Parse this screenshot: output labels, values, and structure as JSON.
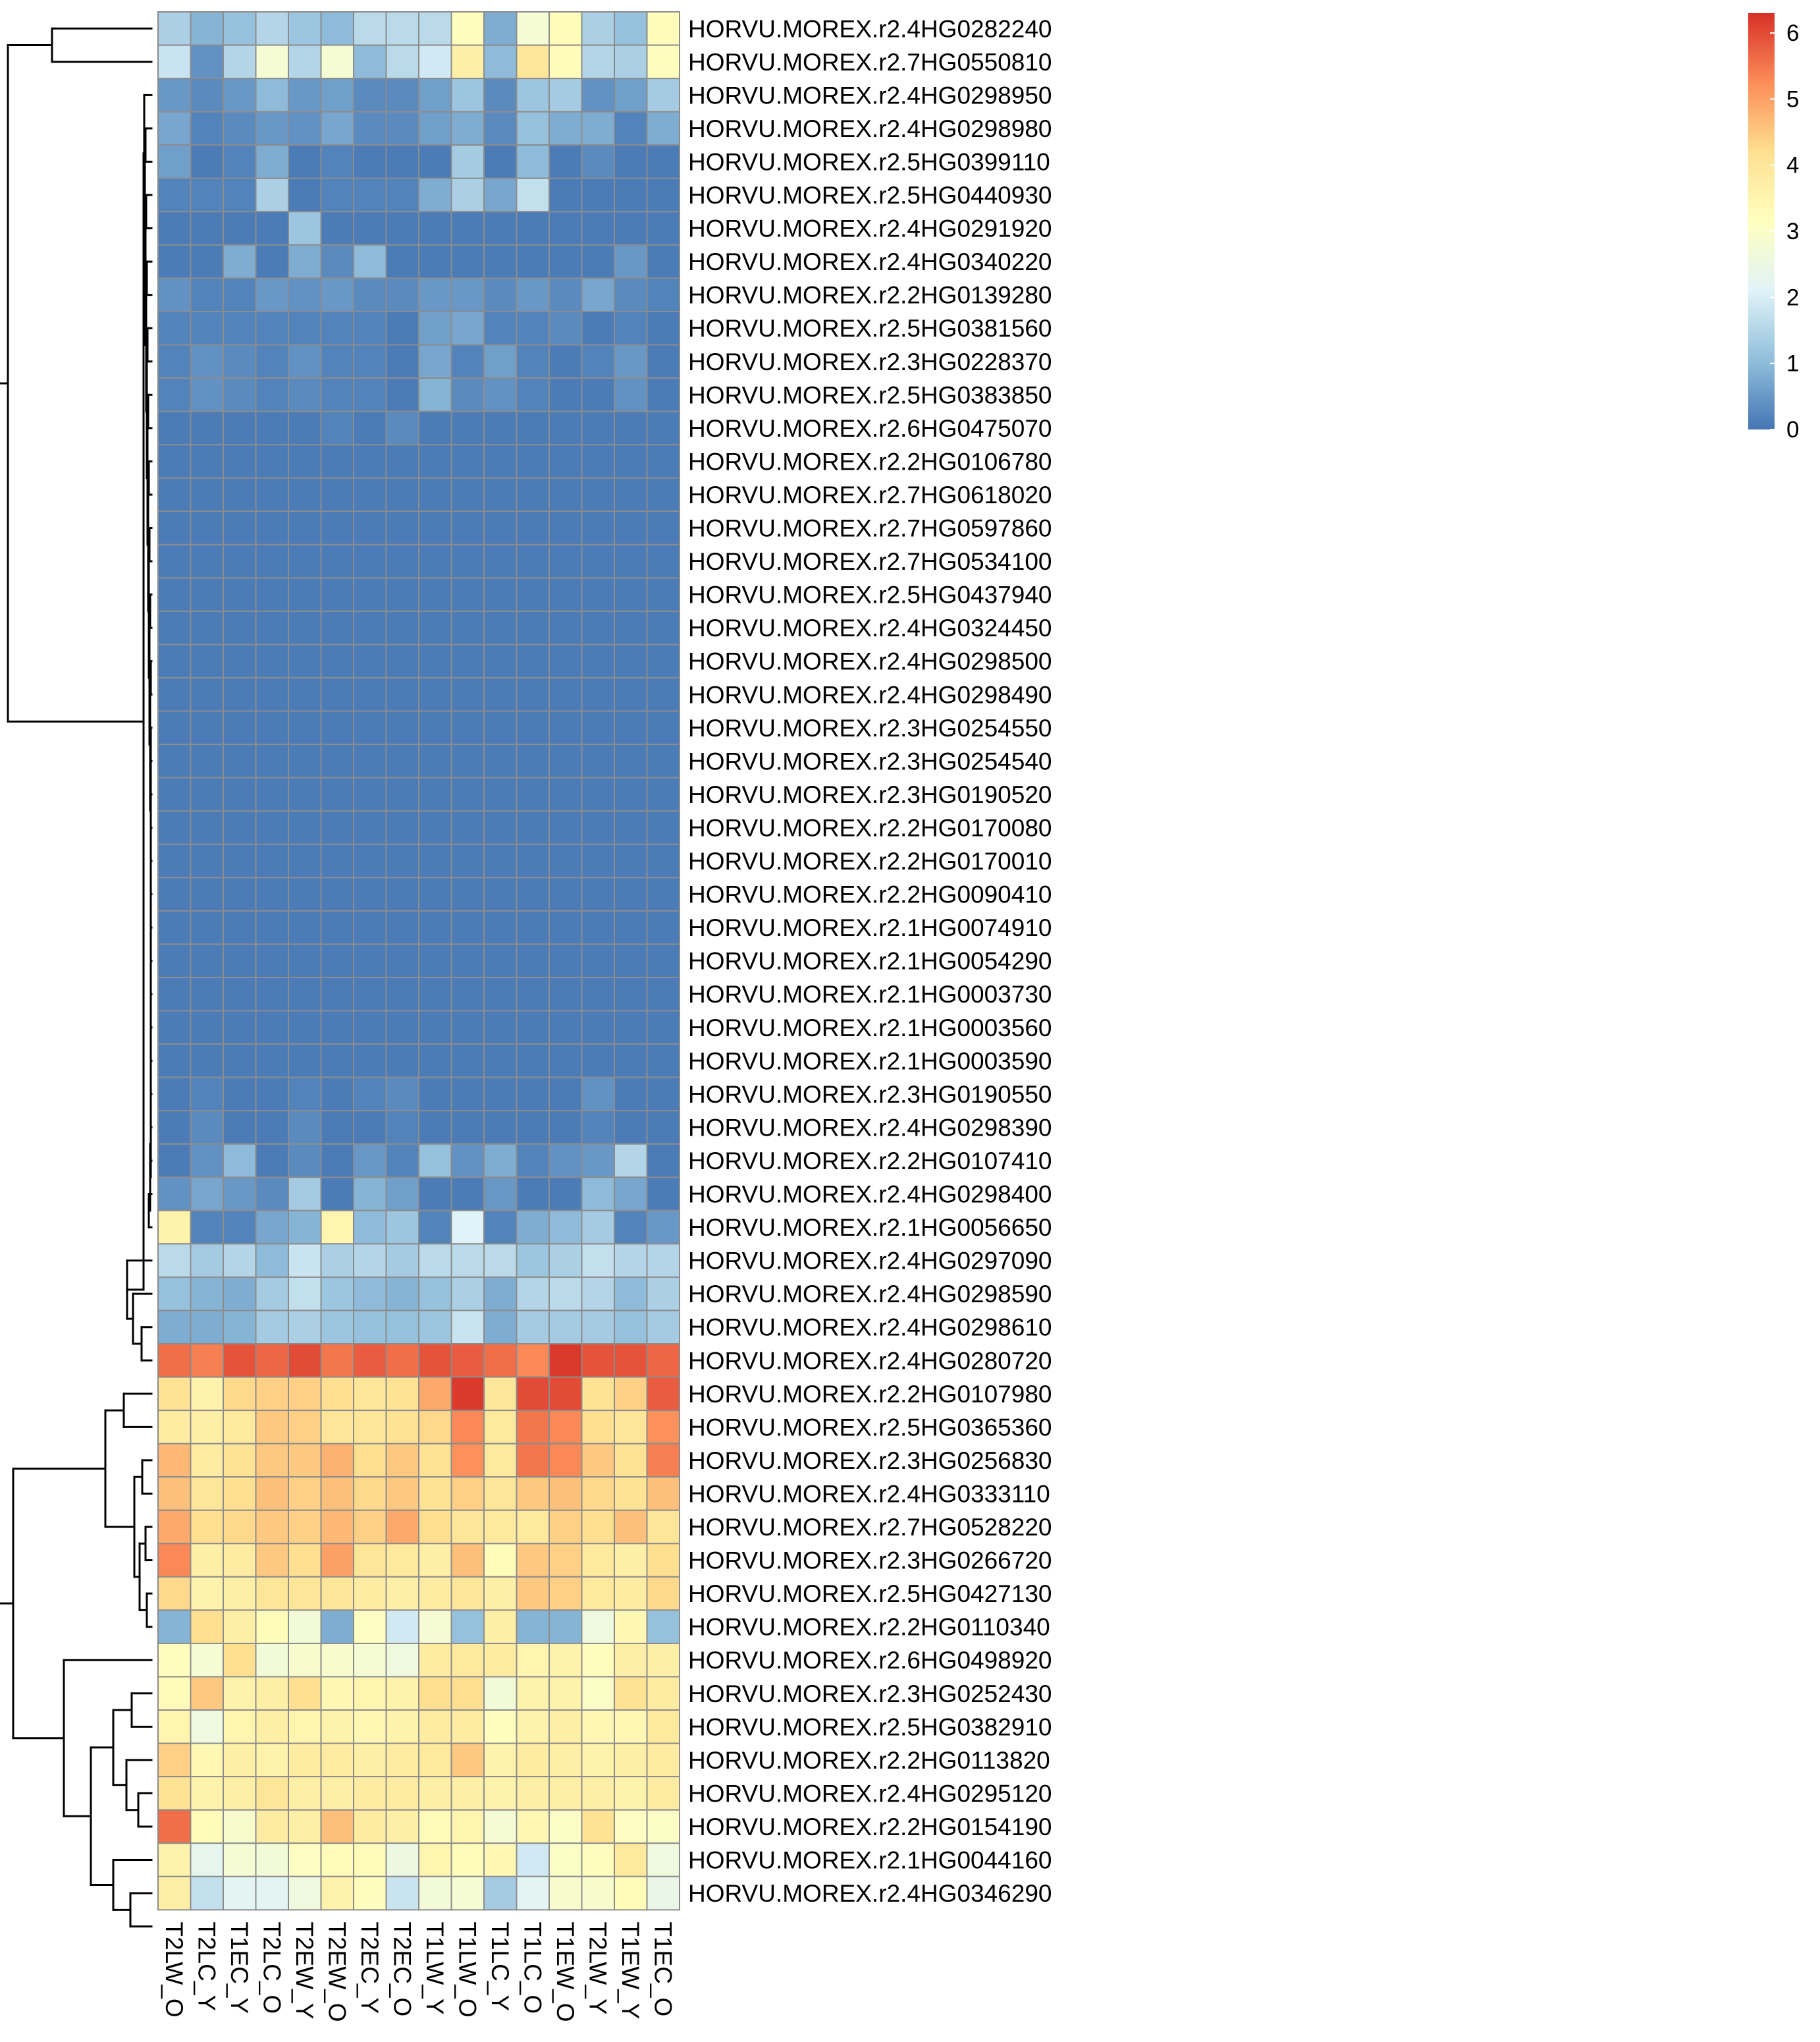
{
  "chart_data": {
    "type": "heatmap",
    "colormap": [
      "#4575B4",
      "#91BFDB",
      "#E0F3F8",
      "#FFFFBF",
      "#FEE090",
      "#FC8D59",
      "#D73027"
    ],
    "value_range": [
      0,
      6.3
    ],
    "legend": {
      "placement": "top-right",
      "ticks": [
        "0",
        "1",
        "2",
        "3",
        "4",
        "5",
        "6"
      ]
    },
    "columns": [
      "T2LW_O",
      "T2LC_Y",
      "T1EC_Y",
      "T2LC_O",
      "T2EW_Y",
      "T2EW_O",
      "T2EC_Y",
      "T2EC_O",
      "T1LW_Y",
      "T1LW_O",
      "T1LC_Y",
      "T1LC_O",
      "T1EW_O",
      "T2LW_Y",
      "T1EW_Y",
      "T1EC_O"
    ],
    "rows": [
      {
        "gene": "HORVU.MOREX.r2.4HG0282240",
        "values": [
          1.4,
          0.9,
          1.1,
          1.5,
          1.2,
          1.0,
          1.6,
          1.6,
          1.6,
          3.2,
          0.8,
          2.8,
          3.3,
          1.4,
          1.1,
          3.3
        ]
      },
      {
        "gene": "HORVU.MOREX.r2.7HG0550810",
        "values": [
          1.8,
          0.4,
          1.5,
          2.8,
          1.5,
          2.8,
          1.0,
          1.6,
          1.9,
          3.7,
          1.0,
          4.0,
          3.3,
          1.5,
          1.4,
          3.2
        ]
      },
      {
        "gene": "HORVU.MOREX.r2.4HG0298950",
        "values": [
          0.5,
          0.3,
          0.5,
          1.0,
          0.5,
          0.6,
          0.3,
          0.3,
          0.6,
          1.2,
          0.3,
          1.2,
          1.3,
          0.4,
          0.6,
          1.3
        ]
      },
      {
        "gene": "HORVU.MOREX.r2.4HG0298980",
        "values": [
          0.7,
          0.2,
          0.3,
          0.5,
          0.4,
          0.7,
          0.3,
          0.3,
          0.6,
          0.8,
          0.3,
          1.1,
          0.8,
          0.8,
          0.2,
          0.8
        ]
      },
      {
        "gene": "HORVU.MOREX.r2.5HG0399110",
        "values": [
          0.6,
          0.1,
          0.2,
          0.8,
          0.1,
          0.2,
          0.1,
          0.1,
          0.1,
          1.3,
          0.1,
          1.0,
          0.1,
          0.3,
          0.1,
          0.1
        ]
      },
      {
        "gene": "HORVU.MOREX.r2.5HG0440930",
        "values": [
          0.2,
          0.2,
          0.2,
          1.4,
          0.1,
          0.2,
          0.2,
          0.2,
          0.8,
          1.4,
          0.7,
          1.7,
          0.1,
          0.1,
          0.1,
          0.1
        ]
      },
      {
        "gene": "HORVU.MOREX.r2.4HG0291920",
        "values": [
          0.1,
          0.1,
          0.1,
          0.1,
          1.2,
          0.1,
          0.1,
          0.1,
          0.1,
          0.1,
          0.1,
          0.1,
          0.1,
          0.1,
          0.1,
          0.1
        ]
      },
      {
        "gene": "HORVU.MOREX.r2.4HG0340220",
        "values": [
          0.1,
          0.1,
          0.8,
          0.1,
          0.8,
          0.3,
          1.0,
          0.1,
          0.1,
          0.1,
          0.1,
          0.1,
          0.1,
          0.1,
          0.5,
          0.1
        ]
      },
      {
        "gene": "HORVU.MOREX.r2.2HG0139280",
        "values": [
          0.4,
          0.2,
          0.2,
          0.5,
          0.4,
          0.5,
          0.3,
          0.3,
          0.5,
          0.5,
          0.3,
          0.5,
          0.3,
          0.7,
          0.3,
          0.2
        ]
      },
      {
        "gene": "HORVU.MOREX.r2.5HG0381560",
        "values": [
          0.2,
          0.2,
          0.2,
          0.2,
          0.2,
          0.2,
          0.2,
          0.1,
          0.6,
          0.7,
          0.2,
          0.2,
          0.3,
          0.1,
          0.2,
          0.1
        ]
      },
      {
        "gene": "HORVU.MOREX.r2.3HG0228370",
        "values": [
          0.2,
          0.4,
          0.3,
          0.2,
          0.4,
          0.2,
          0.2,
          0.1,
          0.7,
          0.2,
          0.6,
          0.2,
          0.1,
          0.2,
          0.5,
          0.1
        ]
      },
      {
        "gene": "HORVU.MOREX.r2.5HG0383850",
        "values": [
          0.2,
          0.4,
          0.3,
          0.2,
          0.3,
          0.2,
          0.2,
          0.1,
          0.9,
          0.3,
          0.4,
          0.2,
          0.1,
          0.1,
          0.4,
          0.1
        ]
      },
      {
        "gene": "HORVU.MOREX.r2.6HG0475070",
        "values": [
          0.1,
          0.1,
          0.1,
          0.1,
          0.1,
          0.2,
          0.1,
          0.3,
          0.1,
          0.1,
          0.1,
          0.1,
          0.1,
          0.1,
          0.1,
          0.1
        ]
      },
      {
        "gene": "HORVU.MOREX.r2.2HG0106780",
        "values": [
          0.1,
          0.1,
          0.1,
          0.1,
          0.1,
          0.1,
          0.1,
          0.1,
          0.1,
          0.1,
          0.1,
          0.1,
          0.1,
          0.1,
          0.1,
          0.1
        ]
      },
      {
        "gene": "HORVU.MOREX.r2.7HG0618020",
        "values": [
          0.1,
          0.1,
          0.1,
          0.1,
          0.1,
          0.1,
          0.1,
          0.1,
          0.1,
          0.1,
          0.1,
          0.1,
          0.1,
          0.1,
          0.1,
          0.1
        ]
      },
      {
        "gene": "HORVU.MOREX.r2.7HG0597860",
        "values": [
          0.1,
          0.1,
          0.1,
          0.1,
          0.1,
          0.1,
          0.1,
          0.1,
          0.1,
          0.1,
          0.1,
          0.1,
          0.1,
          0.1,
          0.1,
          0.1
        ]
      },
      {
        "gene": "HORVU.MOREX.r2.7HG0534100",
        "values": [
          0.1,
          0.1,
          0.1,
          0.1,
          0.1,
          0.1,
          0.1,
          0.1,
          0.1,
          0.1,
          0.1,
          0.1,
          0.1,
          0.1,
          0.1,
          0.1
        ]
      },
      {
        "gene": "HORVU.MOREX.r2.5HG0437940",
        "values": [
          0.1,
          0.1,
          0.1,
          0.1,
          0.1,
          0.1,
          0.1,
          0.1,
          0.1,
          0.1,
          0.1,
          0.1,
          0.1,
          0.1,
          0.1,
          0.1
        ]
      },
      {
        "gene": "HORVU.MOREX.r2.4HG0324450",
        "values": [
          0.1,
          0.1,
          0.1,
          0.1,
          0.1,
          0.1,
          0.1,
          0.1,
          0.1,
          0.1,
          0.1,
          0.1,
          0.1,
          0.1,
          0.1,
          0.1
        ]
      },
      {
        "gene": "HORVU.MOREX.r2.4HG0298500",
        "values": [
          0.1,
          0.1,
          0.1,
          0.1,
          0.1,
          0.1,
          0.1,
          0.1,
          0.1,
          0.1,
          0.1,
          0.1,
          0.1,
          0.1,
          0.1,
          0.1
        ]
      },
      {
        "gene": "HORVU.MOREX.r2.4HG0298490",
        "values": [
          0.1,
          0.1,
          0.1,
          0.1,
          0.1,
          0.1,
          0.1,
          0.1,
          0.1,
          0.1,
          0.1,
          0.1,
          0.1,
          0.1,
          0.1,
          0.1
        ]
      },
      {
        "gene": "HORVU.MOREX.r2.3HG0254550",
        "values": [
          0.1,
          0.1,
          0.1,
          0.1,
          0.1,
          0.1,
          0.1,
          0.1,
          0.1,
          0.1,
          0.1,
          0.1,
          0.1,
          0.1,
          0.1,
          0.1
        ]
      },
      {
        "gene": "HORVU.MOREX.r2.3HG0254540",
        "values": [
          0.1,
          0.1,
          0.1,
          0.1,
          0.1,
          0.1,
          0.1,
          0.1,
          0.1,
          0.1,
          0.1,
          0.1,
          0.1,
          0.1,
          0.1,
          0.1
        ]
      },
      {
        "gene": "HORVU.MOREX.r2.3HG0190520",
        "values": [
          0.1,
          0.1,
          0.1,
          0.1,
          0.1,
          0.1,
          0.1,
          0.1,
          0.1,
          0.1,
          0.1,
          0.1,
          0.1,
          0.1,
          0.1,
          0.1
        ]
      },
      {
        "gene": "HORVU.MOREX.r2.2HG0170080",
        "values": [
          0.1,
          0.1,
          0.1,
          0.1,
          0.1,
          0.1,
          0.1,
          0.1,
          0.1,
          0.1,
          0.1,
          0.1,
          0.1,
          0.1,
          0.1,
          0.1
        ]
      },
      {
        "gene": "HORVU.MOREX.r2.2HG0170010",
        "values": [
          0.1,
          0.1,
          0.1,
          0.1,
          0.1,
          0.1,
          0.1,
          0.1,
          0.1,
          0.1,
          0.1,
          0.1,
          0.1,
          0.1,
          0.1,
          0.1
        ]
      },
      {
        "gene": "HORVU.MOREX.r2.2HG0090410",
        "values": [
          0.1,
          0.1,
          0.1,
          0.1,
          0.1,
          0.1,
          0.1,
          0.1,
          0.1,
          0.1,
          0.1,
          0.1,
          0.1,
          0.1,
          0.1,
          0.1
        ]
      },
      {
        "gene": "HORVU.MOREX.r2.1HG0074910",
        "values": [
          0.1,
          0.1,
          0.1,
          0.1,
          0.1,
          0.1,
          0.1,
          0.1,
          0.1,
          0.1,
          0.1,
          0.1,
          0.1,
          0.1,
          0.1,
          0.1
        ]
      },
      {
        "gene": "HORVU.MOREX.r2.1HG0054290",
        "values": [
          0.1,
          0.1,
          0.1,
          0.1,
          0.1,
          0.1,
          0.1,
          0.1,
          0.1,
          0.1,
          0.1,
          0.1,
          0.1,
          0.1,
          0.1,
          0.1
        ]
      },
      {
        "gene": "HORVU.MOREX.r2.1HG0003730",
        "values": [
          0.1,
          0.1,
          0.1,
          0.1,
          0.1,
          0.1,
          0.1,
          0.1,
          0.1,
          0.1,
          0.1,
          0.1,
          0.1,
          0.1,
          0.1,
          0.1
        ]
      },
      {
        "gene": "HORVU.MOREX.r2.1HG0003560",
        "values": [
          0.1,
          0.1,
          0.1,
          0.1,
          0.1,
          0.1,
          0.1,
          0.1,
          0.1,
          0.1,
          0.1,
          0.1,
          0.1,
          0.1,
          0.1,
          0.1
        ]
      },
      {
        "gene": "HORVU.MOREX.r2.1HG0003590",
        "values": [
          0.1,
          0.1,
          0.1,
          0.1,
          0.1,
          0.1,
          0.1,
          0.1,
          0.1,
          0.1,
          0.1,
          0.1,
          0.1,
          0.1,
          0.1,
          0.1
        ]
      },
      {
        "gene": "HORVU.MOREX.r2.3HG0190550",
        "values": [
          0.1,
          0.2,
          0.1,
          0.1,
          0.2,
          0.1,
          0.2,
          0.3,
          0.1,
          0.1,
          0.1,
          0.1,
          0.1,
          0.4,
          0.1,
          0.1
        ]
      },
      {
        "gene": "HORVU.MOREX.r2.4HG0298390",
        "values": [
          0.1,
          0.3,
          0.1,
          0.1,
          0.3,
          0.1,
          0.1,
          0.2,
          0.1,
          0.1,
          0.1,
          0.1,
          0.1,
          0.2,
          0.1,
          0.1
        ]
      },
      {
        "gene": "HORVU.MOREX.r2.2HG0107410",
        "values": [
          0.1,
          0.4,
          1.0,
          0.1,
          0.3,
          0.1,
          0.5,
          0.2,
          1.1,
          0.4,
          0.8,
          0.2,
          0.4,
          0.5,
          1.5,
          0.1
        ]
      },
      {
        "gene": "HORVU.MOREX.r2.4HG0298400",
        "values": [
          0.4,
          0.7,
          0.5,
          0.3,
          1.3,
          0.1,
          0.9,
          0.6,
          0.1,
          0.1,
          0.5,
          0.1,
          0.1,
          1.0,
          0.7,
          0.1
        ]
      },
      {
        "gene": "HORVU.MOREX.r2.1HG0056650",
        "values": [
          3.6,
          0.2,
          0.2,
          0.7,
          0.9,
          3.5,
          1.0,
          1.2,
          0.2,
          2.1,
          0.2,
          0.8,
          1.0,
          1.3,
          0.2,
          0.5
        ]
      },
      {
        "gene": "HORVU.MOREX.r2.4HG0297090",
        "values": [
          1.6,
          1.3,
          1.5,
          1.0,
          1.8,
          1.4,
          1.5,
          1.3,
          1.6,
          1.6,
          1.6,
          1.2,
          1.4,
          1.7,
          1.5,
          1.5
        ]
      },
      {
        "gene": "HORVU.MOREX.r2.4HG0298590",
        "values": [
          1.1,
          0.9,
          0.8,
          1.3,
          1.7,
          1.2,
          1.0,
          0.9,
          1.1,
          1.4,
          0.8,
          1.5,
          1.6,
          1.5,
          1.0,
          1.4
        ]
      },
      {
        "gene": "HORVU.MOREX.r2.4HG0298610",
        "values": [
          0.8,
          0.8,
          0.9,
          1.3,
          1.4,
          1.2,
          1.1,
          1.1,
          1.2,
          1.8,
          0.8,
          1.3,
          1.3,
          1.3,
          1.1,
          1.3
        ]
      },
      {
        "gene": "HORVU.MOREX.r2.4HG0280720",
        "values": [
          5.6,
          5.4,
          5.9,
          5.7,
          6.0,
          5.5,
          5.8,
          5.6,
          5.9,
          5.8,
          5.6,
          5.3,
          6.2,
          5.9,
          5.9,
          5.7
        ]
      },
      {
        "gene": "HORVU.MOREX.r2.2HG0107980",
        "values": [
          4.1,
          3.6,
          4.3,
          4.4,
          4.4,
          4.2,
          4.0,
          4.1,
          4.9,
          6.2,
          4.0,
          6.0,
          6.0,
          4.1,
          4.4,
          5.8
        ]
      },
      {
        "gene": "HORVU.MOREX.r2.5HG0365360",
        "values": [
          3.8,
          3.7,
          3.9,
          4.5,
          4.4,
          4.0,
          4.0,
          4.1,
          4.3,
          5.3,
          3.9,
          5.5,
          5.3,
          4.2,
          4.0,
          5.2
        ]
      },
      {
        "gene": "HORVU.MOREX.r2.3HG0256830",
        "values": [
          4.7,
          3.8,
          4.1,
          4.5,
          4.5,
          4.8,
          4.2,
          4.5,
          4.1,
          5.2,
          3.9,
          5.5,
          5.3,
          4.5,
          4.1,
          5.4
        ]
      },
      {
        "gene": "HORVU.MOREX.r2.4HG0333110",
        "values": [
          4.6,
          4.0,
          4.2,
          4.6,
          4.4,
          4.6,
          4.3,
          4.5,
          4.1,
          4.4,
          4.0,
          4.5,
          4.6,
          4.3,
          4.1,
          4.6
        ]
      },
      {
        "gene": "HORVU.MOREX.r2.7HG0528220",
        "values": [
          4.9,
          4.2,
          4.3,
          4.5,
          4.4,
          4.7,
          4.4,
          4.9,
          4.2,
          4.0,
          3.9,
          3.9,
          4.4,
          4.2,
          4.6,
          4.0
        ]
      },
      {
        "gene": "HORVU.MOREX.r2.3HG0266720",
        "values": [
          5.3,
          3.7,
          3.8,
          4.5,
          4.2,
          5.0,
          4.0,
          3.9,
          3.7,
          4.6,
          3.3,
          4.5,
          4.4,
          3.9,
          3.7,
          4.2
        ]
      },
      {
        "gene": "HORVU.MOREX.r2.5HG0427130",
        "values": [
          4.3,
          3.6,
          3.7,
          4.0,
          4.0,
          4.0,
          3.8,
          3.7,
          3.8,
          4.0,
          3.7,
          4.5,
          4.4,
          3.9,
          3.8,
          4.3
        ]
      },
      {
        "gene": "HORVU.MOREX.r2.2HG0110340",
        "values": [
          0.9,
          4.2,
          3.7,
          3.3,
          2.7,
          0.8,
          3.1,
          1.9,
          2.8,
          1.1,
          3.7,
          0.9,
          0.9,
          2.6,
          3.4,
          1.1
        ]
      },
      {
        "gene": "HORVU.MOREX.r2.6HG0498920",
        "values": [
          3.2,
          2.8,
          4.2,
          2.7,
          2.9,
          2.9,
          2.8,
          2.6,
          3.8,
          3.9,
          3.8,
          3.5,
          3.6,
          3.2,
          3.7,
          3.7
        ]
      },
      {
        "gene": "HORVU.MOREX.r2.3HG0252430",
        "values": [
          3.3,
          4.5,
          3.6,
          3.7,
          4.2,
          3.4,
          3.5,
          3.6,
          4.2,
          4.2,
          2.7,
          3.6,
          3.6,
          3.0,
          4.1,
          3.8
        ]
      },
      {
        "gene": "HORVU.MOREX.r2.5HG0382910",
        "values": [
          3.5,
          2.6,
          3.5,
          3.7,
          3.5,
          3.6,
          3.4,
          3.6,
          3.8,
          3.8,
          3.2,
          3.6,
          3.7,
          3.4,
          3.4,
          3.9
        ]
      },
      {
        "gene": "HORVU.MOREX.r2.2HG0113820",
        "values": [
          4.4,
          3.4,
          3.7,
          3.6,
          3.8,
          3.8,
          3.7,
          3.8,
          3.9,
          4.5,
          3.6,
          3.8,
          3.7,
          3.6,
          3.7,
          3.8
        ]
      },
      {
        "gene": "HORVU.MOREX.r2.4HG0295120",
        "values": [
          4.1,
          3.6,
          3.7,
          4.0,
          3.7,
          3.7,
          3.8,
          3.8,
          3.7,
          3.7,
          3.6,
          3.7,
          3.7,
          3.7,
          3.6,
          3.8
        ]
      },
      {
        "gene": "HORVU.MOREX.r2.2HG0154190",
        "values": [
          5.6,
          3.3,
          2.9,
          3.8,
          3.7,
          4.6,
          3.8,
          3.7,
          3.3,
          3.5,
          2.8,
          3.4,
          3.0,
          4.1,
          3.1,
          3.0
        ]
      },
      {
        "gene": "HORVU.MOREX.r2.1HG0044160",
        "values": [
          3.6,
          2.3,
          2.8,
          2.7,
          3.1,
          3.3,
          3.3,
          2.5,
          3.5,
          3.3,
          3.4,
          1.9,
          3.0,
          3.2,
          3.9,
          2.6
        ]
      },
      {
        "gene": "HORVU.MOREX.r2.4HG0346290",
        "values": [
          3.7,
          1.7,
          2.2,
          2.2,
          2.6,
          3.6,
          3.2,
          1.8,
          2.7,
          2.8,
          1.3,
          2.2,
          2.9,
          2.9,
          3.3,
          2.4
        ]
      }
    ]
  }
}
